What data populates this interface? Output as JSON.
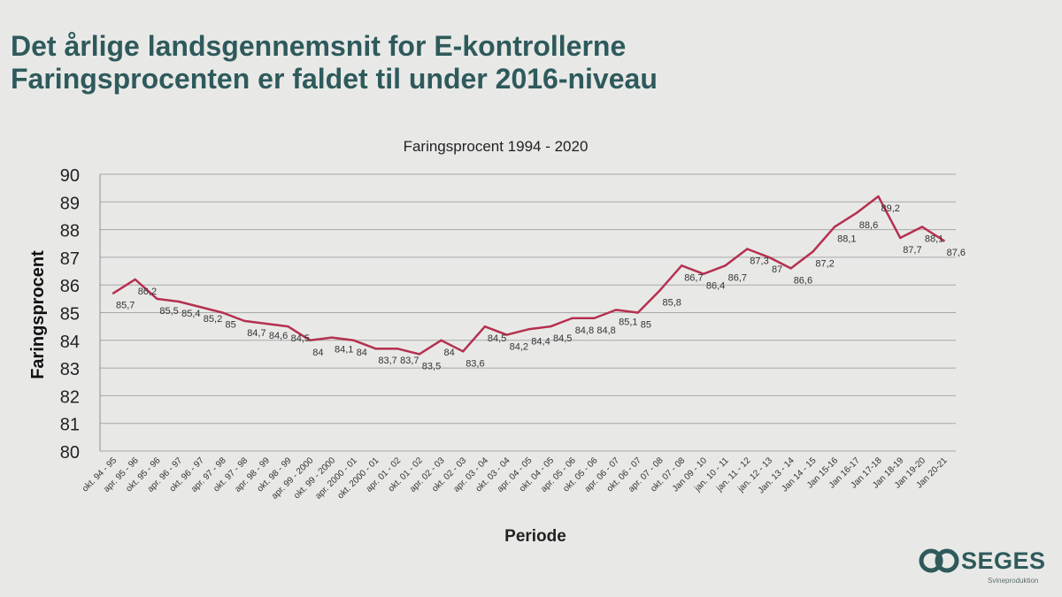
{
  "slide": {
    "title_line1": "Det årlige landsgennemsnit for E-kontrollerne",
    "title_line2": "Faringsprocenten er faldet til under 2016-niveau"
  },
  "logo": {
    "name": "SEGES",
    "subtitle": "Svineproduktion"
  },
  "colors": {
    "line": "#b5304f",
    "title": "#2f5a5c",
    "grid": "#a7a8a8",
    "background": "#e8e9e7"
  },
  "chart_data": {
    "type": "line",
    "title": "Faringsprocent 1994 - 2020",
    "xlabel": "Periode",
    "ylabel": "Faringsprocent",
    "ylim": [
      80,
      90
    ],
    "yticks": [
      80,
      81,
      82,
      83,
      84,
      85,
      86,
      87,
      88,
      89,
      90
    ],
    "grid": true,
    "legend": "none",
    "categories": [
      "okt. 94 - 95",
      "apr. 95 - 96",
      "okt. 95 - 96",
      "apr. 96 - 97",
      "okt. 96 - 97",
      "apr. 97 - 98",
      "okt. 97 - 98",
      "apr. 98 - 99",
      "okt. 98 - 99",
      "apr. 99 - 2000",
      "okt. 99 - 2000",
      "apr. 2000 - 01",
      "okt. 2000 - 01",
      "apr. 01 - 02",
      "okt. 01 - 02",
      "apr. 02 - 03",
      "okt. 02 - 03",
      "apr. 03 - 04",
      "okt. 03 - 04",
      "apr. 04 - 05",
      "okt. 04 - 05",
      "apr. 05 - 06",
      "okt. 05 - 06",
      "apr. 06 - 07",
      "okt. 06 - 07",
      "apr. 07 - 08",
      "okt. 07 - 08",
      "Jan 09 - 10",
      "jan. 10 - 11",
      "jan. 11 - 12",
      "jan. 12 - 13",
      "Jan. 13 - 14",
      "Jan 14 - 15",
      "Jan 15-16",
      "Jan 16-17",
      "Jan 17-18",
      "Jan 18-19",
      "Jan 19-20",
      "Jan 20-21"
    ],
    "series": [
      {
        "values": [
          85.7,
          86.2,
          85.5,
          85.4,
          85.2,
          85,
          84.7,
          84.6,
          84.5,
          84,
          84.1,
          84,
          83.7,
          83.7,
          83.5,
          84,
          83.6,
          84.5,
          84.2,
          84.4,
          84.5,
          84.8,
          84.8,
          85.1,
          85,
          85.8,
          86.7,
          86.4,
          86.7,
          87.3,
          87,
          86.6,
          87.2,
          88.1,
          88.6,
          89.2,
          87.7,
          88.1,
          87.6
        ],
        "labels": [
          "85,7",
          "86,2",
          "85,5",
          "85,4",
          "85,2",
          "85",
          "84,7",
          "84,6",
          "84,5",
          "84",
          "84,1",
          "84",
          "83,7",
          "83,7",
          "83,5",
          "84",
          "83,6",
          "84,5",
          "84,2",
          "84,4",
          "84,5",
          "84,8",
          "84,8",
          "85,1",
          "85",
          "85,8",
          "86,7",
          "86,4",
          "86,7",
          "87,3",
          "87",
          "86,6",
          "87,2",
          "88,1",
          "88,6",
          "89,2",
          "87,7",
          "88,1",
          "87,6"
        ]
      }
    ]
  }
}
